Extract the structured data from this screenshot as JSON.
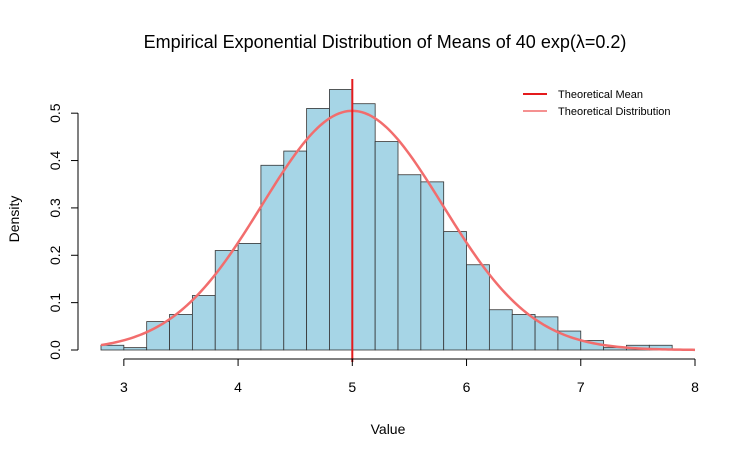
{
  "chart_data": {
    "type": "bar",
    "title": "Empirical Exponential Distribution of Means of 40 exp(λ=0.2)",
    "xlabel": "Value",
    "ylabel": "Density",
    "xlim": [
      2.8,
      8.0
    ],
    "ylim": [
      0.0,
      0.55
    ],
    "xticks": [
      "3",
      "4",
      "5",
      "6",
      "7",
      "8"
    ],
    "yticks": [
      "0.0",
      "0.1",
      "0.2",
      "0.3",
      "0.4",
      "0.5"
    ],
    "bin_width": 0.2,
    "bins": [
      {
        "x0": 2.8,
        "x1": 3.0,
        "density": 0.01
      },
      {
        "x0": 3.0,
        "x1": 3.2,
        "density": 0.005
      },
      {
        "x0": 3.2,
        "x1": 3.4,
        "density": 0.06
      },
      {
        "x0": 3.4,
        "x1": 3.6,
        "density": 0.075
      },
      {
        "x0": 3.6,
        "x1": 3.8,
        "density": 0.115
      },
      {
        "x0": 3.8,
        "x1": 4.0,
        "density": 0.21
      },
      {
        "x0": 4.0,
        "x1": 4.2,
        "density": 0.225
      },
      {
        "x0": 4.2,
        "x1": 4.4,
        "density": 0.39
      },
      {
        "x0": 4.4,
        "x1": 4.6,
        "density": 0.42
      },
      {
        "x0": 4.6,
        "x1": 4.8,
        "density": 0.51
      },
      {
        "x0": 4.8,
        "x1": 5.0,
        "density": 0.55
      },
      {
        "x0": 5.0,
        "x1": 5.2,
        "density": 0.52
      },
      {
        "x0": 5.2,
        "x1": 5.4,
        "density": 0.44
      },
      {
        "x0": 5.4,
        "x1": 5.6,
        "density": 0.37
      },
      {
        "x0": 5.6,
        "x1": 5.8,
        "density": 0.355
      },
      {
        "x0": 5.8,
        "x1": 6.0,
        "density": 0.25
      },
      {
        "x0": 6.0,
        "x1": 6.2,
        "density": 0.18
      },
      {
        "x0": 6.2,
        "x1": 6.4,
        "density": 0.085
      },
      {
        "x0": 6.4,
        "x1": 6.6,
        "density": 0.075
      },
      {
        "x0": 6.6,
        "x1": 6.8,
        "density": 0.07
      },
      {
        "x0": 6.8,
        "x1": 7.0,
        "density": 0.04
      },
      {
        "x0": 7.0,
        "x1": 7.2,
        "density": 0.02
      },
      {
        "x0": 7.2,
        "x1": 7.4,
        "density": 0.005
      },
      {
        "x0": 7.4,
        "x1": 7.6,
        "density": 0.01
      },
      {
        "x0": 7.6,
        "x1": 7.8,
        "density": 0.01
      }
    ],
    "theoretical_mean": 5,
    "theoretical_distribution": {
      "mean": 5,
      "sd": 0.79,
      "x_range": [
        2.8,
        8.0
      ]
    },
    "legend": {
      "placement": "top-right",
      "entries": [
        {
          "label": "Theoretical Mean",
          "color": "#e41a1c"
        },
        {
          "label": "Theoretical Distribution",
          "color": "#f26d6d"
        }
      ]
    },
    "colors": {
      "bar_fill": "#a6d5e6",
      "bar_stroke": "#333333",
      "mean_line": "#e41a1c",
      "density_curve": "#f26d6d"
    }
  }
}
